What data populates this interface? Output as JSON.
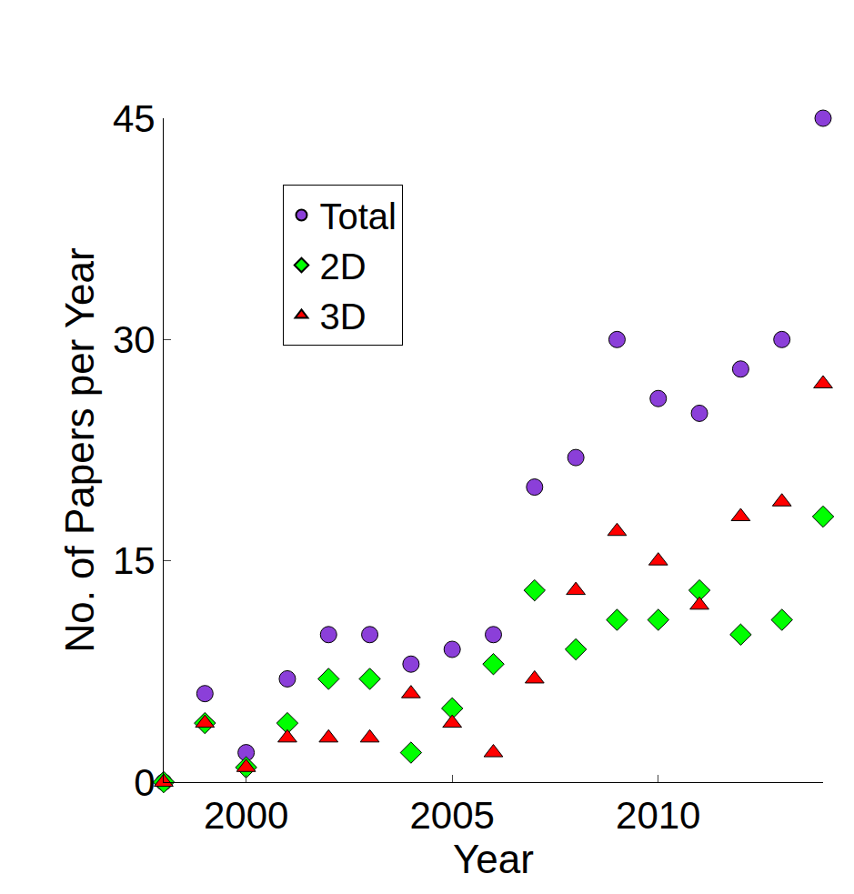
{
  "chart_data": {
    "type": "scatter",
    "x_label": "Year",
    "y_label": "No. of Papers per Year",
    "x": [
      1998,
      1999,
      2000,
      2001,
      2002,
      2003,
      2004,
      2005,
      2006,
      2007,
      2008,
      2009,
      2010,
      2011,
      2012,
      2013,
      2014
    ],
    "series": [
      {
        "name": "Total",
        "color": "#8b3fd9",
        "marker": "circle",
        "values": [
          0,
          6,
          2,
          7,
          10,
          10,
          8,
          9,
          10,
          20,
          22,
          30,
          26,
          25,
          28,
          30,
          45
        ]
      },
      {
        "name": "2D",
        "color": "#00ff00",
        "marker": "diamond",
        "values": [
          0,
          4,
          1,
          4,
          7,
          7,
          2,
          5,
          8,
          13,
          9,
          11,
          11,
          13,
          10,
          11,
          18
        ]
      },
      {
        "name": "3D",
        "color": "#ff0000",
        "marker": "triangle-up",
        "values": [
          0,
          4,
          1,
          3,
          3,
          3,
          6,
          4,
          2,
          7,
          13,
          17,
          15,
          12,
          18,
          19,
          27
        ]
      }
    ],
    "xlim": [
      1998,
      2014
    ],
    "xticks": [
      2000,
      2005,
      2010
    ],
    "ylim": [
      0,
      45
    ],
    "yticks": [
      0,
      15,
      30,
      45
    ],
    "grid": false,
    "legend": "upper left"
  }
}
